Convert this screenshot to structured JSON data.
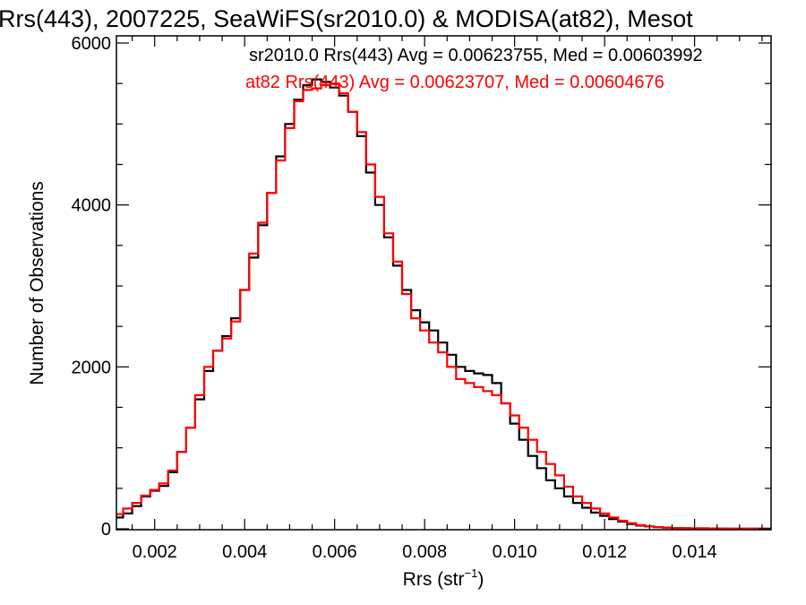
{
  "chart_data": {
    "type": "line",
    "title": "Rrs(443), 2007225, SeaWiFS(sr2010.0) & MODISA(at82), Mesot",
    "xlabel_main": "Rrs (str",
    "xlabel_sup": "−1",
    "xlabel_close": ")",
    "ylabel": "Number of Observations",
    "xlim": [
      0.00115,
      0.0157
    ],
    "ylim": [
      0,
      6000
    ],
    "xticks": [
      {
        "value": 0.002,
        "label": "0.002"
      },
      {
        "value": 0.004,
        "label": "0.004"
      },
      {
        "value": 0.006,
        "label": "0.006"
      },
      {
        "value": 0.008,
        "label": "0.008"
      },
      {
        "value": 0.01,
        "label": "0.010"
      },
      {
        "value": 0.012,
        "label": "0.012"
      },
      {
        "value": 0.014,
        "label": "0.014"
      }
    ],
    "yticks": [
      {
        "value": 0,
        "label": "0"
      },
      {
        "value": 2000,
        "label": "2000"
      },
      {
        "value": 4000,
        "label": "4000"
      },
      {
        "value": 6000,
        "label": "6000"
      }
    ],
    "grid": false,
    "legend": [
      {
        "text": "sr2010.0 Rrs(443) Avg = 0.00623755, Med = 0.00603992",
        "color": "#000000"
      },
      {
        "text": "at82 Rrs(443) Avg = 0.00623707, Med = 0.00604676",
        "color": "#ff0000"
      }
    ],
    "series": [
      {
        "color": "#000000",
        "x": [
          0.00115,
          0.0013,
          0.0015,
          0.0017,
          0.0019,
          0.0021,
          0.0023,
          0.0025,
          0.0027,
          0.0029,
          0.0031,
          0.0033,
          0.0035,
          0.0037,
          0.0039,
          0.0041,
          0.0043,
          0.0045,
          0.0047,
          0.0049,
          0.0051,
          0.0053,
          0.0055,
          0.0057,
          0.0059,
          0.0061,
          0.0063,
          0.0065,
          0.0067,
          0.0069,
          0.0071,
          0.0073,
          0.0075,
          0.0077,
          0.0079,
          0.0081,
          0.0083,
          0.0085,
          0.0087,
          0.0089,
          0.0091,
          0.0093,
          0.0095,
          0.0097,
          0.0099,
          0.0101,
          0.0103,
          0.0105,
          0.0107,
          0.0109,
          0.0111,
          0.0113,
          0.0115,
          0.0117,
          0.0119,
          0.0121,
          0.0123,
          0.0125,
          0.0127,
          0.0129,
          0.0131,
          0.0133,
          0.0135,
          0.0137,
          0.0139,
          0.0141,
          0.0143,
          0.0145,
          0.0147,
          0.0149,
          0.0151,
          0.0153,
          0.0155,
          0.0157
        ],
        "y": [
          140,
          190,
          280,
          400,
          470,
          530,
          700,
          950,
          1250,
          1600,
          1950,
          2200,
          2380,
          2600,
          2950,
          3350,
          3750,
          4150,
          4600,
          5000,
          5300,
          5480,
          5550,
          5520,
          5450,
          5350,
          5150,
          4850,
          4400,
          4000,
          3600,
          3250,
          2950,
          2700,
          2550,
          2450,
          2300,
          2150,
          2000,
          1950,
          1920,
          1900,
          1800,
          1550,
          1300,
          1100,
          900,
          750,
          600,
          500,
          400,
          320,
          260,
          200,
          160,
          120,
          90,
          60,
          40,
          30,
          20,
          15,
          10,
          8,
          6,
          5,
          4,
          3,
          2,
          2,
          1,
          1,
          1,
          1
        ]
      },
      {
        "color": "#ff0000",
        "x": [
          0.00115,
          0.0013,
          0.0015,
          0.0017,
          0.0019,
          0.0021,
          0.0023,
          0.0025,
          0.0027,
          0.0029,
          0.0031,
          0.0033,
          0.0035,
          0.0037,
          0.0039,
          0.0041,
          0.0043,
          0.0045,
          0.0047,
          0.0049,
          0.0051,
          0.0053,
          0.0055,
          0.0057,
          0.0059,
          0.0061,
          0.0063,
          0.0065,
          0.0067,
          0.0069,
          0.0071,
          0.0073,
          0.0075,
          0.0077,
          0.0079,
          0.0081,
          0.0083,
          0.0085,
          0.0087,
          0.0089,
          0.0091,
          0.0093,
          0.0095,
          0.0097,
          0.0099,
          0.0101,
          0.0103,
          0.0105,
          0.0107,
          0.0109,
          0.0111,
          0.0113,
          0.0115,
          0.0117,
          0.0119,
          0.0121,
          0.0123,
          0.0125,
          0.0127,
          0.0129,
          0.0131,
          0.0133,
          0.0135,
          0.0137,
          0.0139,
          0.0141,
          0.0143,
          0.0145,
          0.0147,
          0.0149,
          0.0151,
          0.0153,
          0.0155,
          0.0157
        ],
        "y": [
          180,
          250,
          320,
          410,
          480,
          560,
          720,
          950,
          1250,
          1650,
          2000,
          2200,
          2350,
          2560,
          2950,
          3400,
          3780,
          4150,
          4550,
          4950,
          5280,
          5420,
          5440,
          5480,
          5500,
          5380,
          5150,
          4900,
          4500,
          4100,
          3650,
          3300,
          2900,
          2600,
          2450,
          2300,
          2180,
          2000,
          1850,
          1800,
          1750,
          1700,
          1650,
          1550,
          1400,
          1250,
          1100,
          950,
          800,
          660,
          520,
          400,
          320,
          250,
          190,
          140,
          100,
          70,
          45,
          30,
          20,
          15,
          10,
          8,
          6,
          5,
          4,
          3,
          2,
          2,
          1,
          1,
          1,
          1
        ]
      }
    ]
  }
}
